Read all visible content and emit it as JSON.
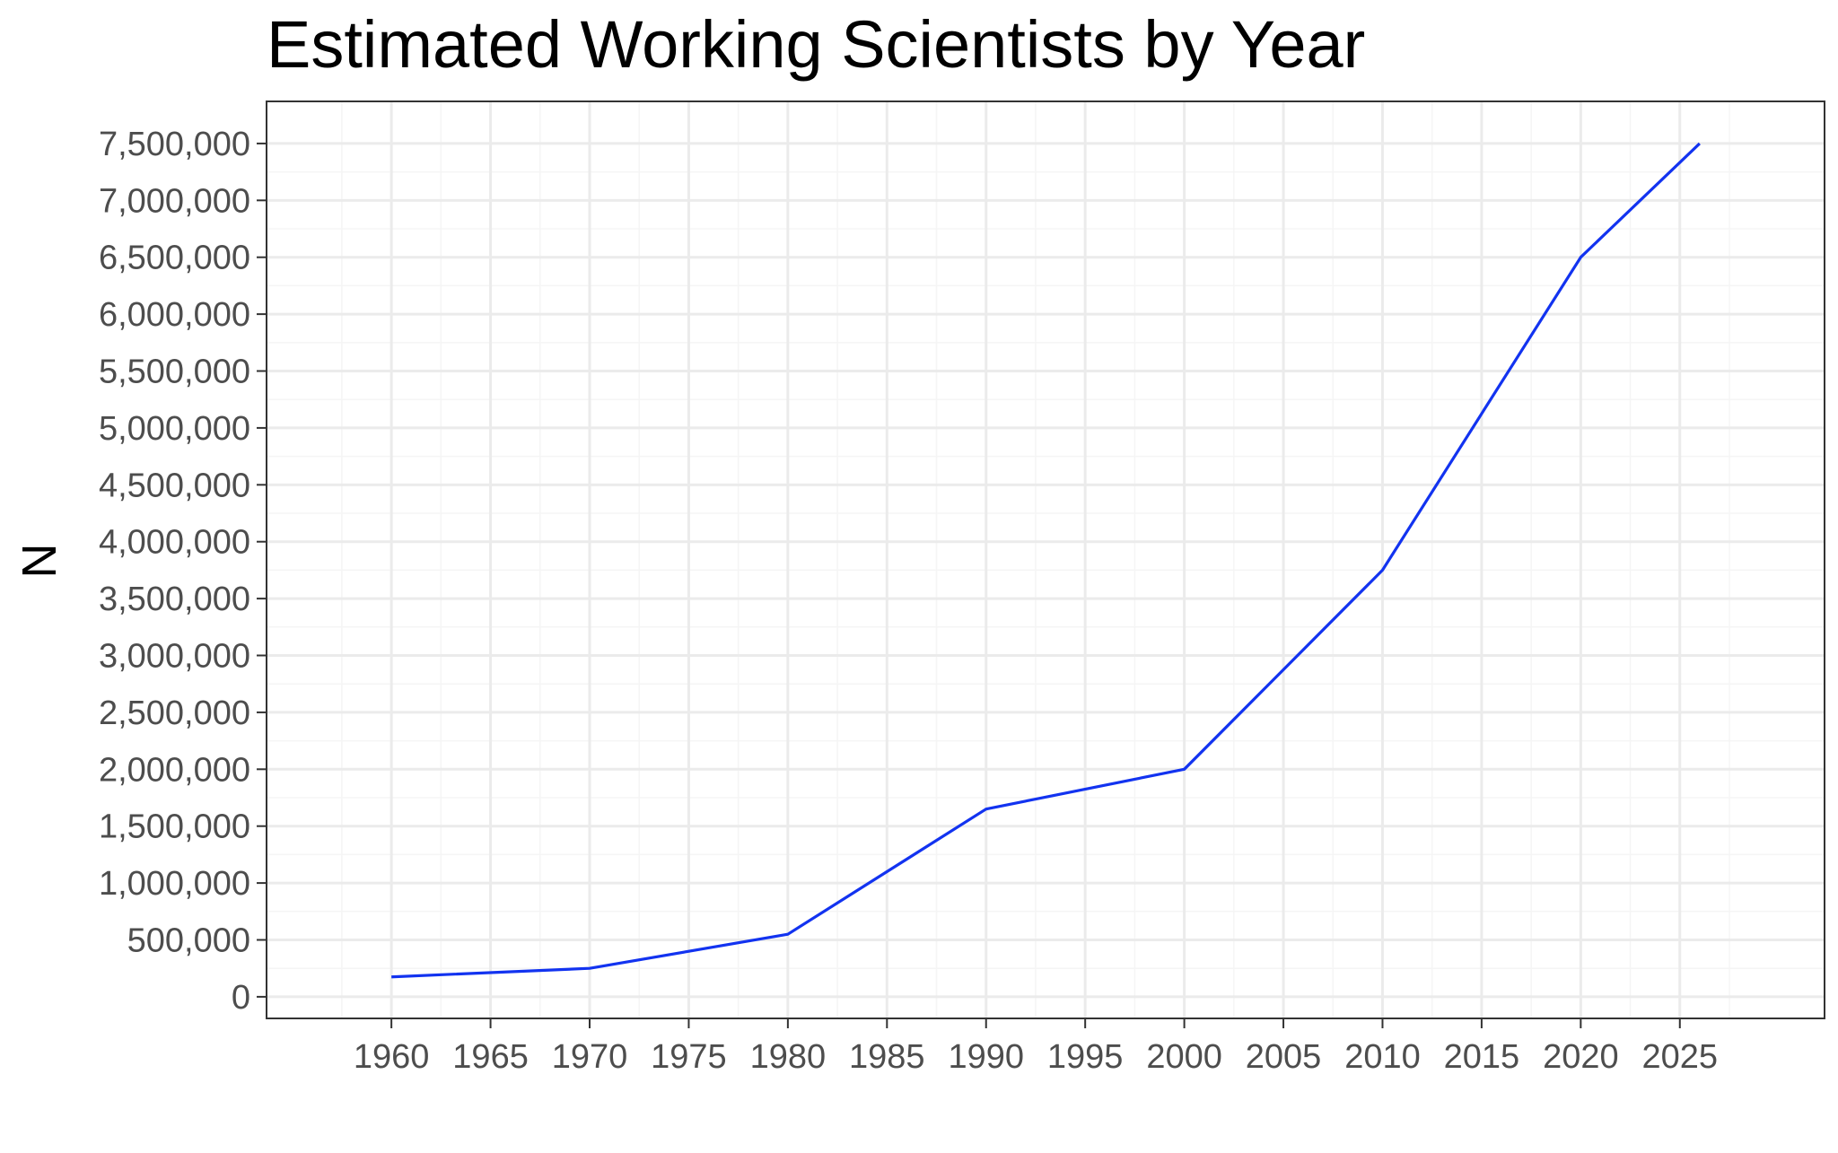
{
  "chart_data": {
    "type": "line",
    "title": "Estimated Working Scientists by Year",
    "xlabel": "",
    "ylabel": "N",
    "x": [
      1960,
      1970,
      1980,
      1990,
      2000,
      2010,
      2020,
      2026
    ],
    "series": [
      {
        "values": [
          175000,
          250000,
          550000,
          1650000,
          2000000,
          3750000,
          6500000,
          7500000
        ]
      }
    ],
    "xlim": [
      1953.7,
      2032.3
    ],
    "ylim": [
      -190000,
      7870000
    ],
    "x_ticks": [
      1960,
      1965,
      1970,
      1975,
      1980,
      1985,
      1990,
      1995,
      2000,
      2005,
      2010,
      2015,
      2020,
      2025
    ],
    "x_tick_labels": [
      "1960",
      "1965",
      "1970",
      "1975",
      "1980",
      "1985",
      "1990",
      "1995",
      "2000",
      "2005",
      "2010",
      "2015",
      "2020",
      "2025"
    ],
    "y_ticks": [
      0,
      500000,
      1000000,
      1500000,
      2000000,
      2500000,
      3000000,
      3500000,
      4000000,
      4500000,
      5000000,
      5500000,
      6000000,
      6500000,
      7000000,
      7500000
    ],
    "y_tick_labels": [
      "0",
      "500,000",
      "1,000,000",
      "1,500,000",
      "2,000,000",
      "2,500,000",
      "3,000,000",
      "3,500,000",
      "4,000,000",
      "4,500,000",
      "5,000,000",
      "5,500,000",
      "6,000,000",
      "6,500,000",
      "7,000,000",
      "7,500,000"
    ],
    "grid": true,
    "legend": "none",
    "colors": {
      "line": "#1233f0",
      "grid_major": "#ebebeb",
      "grid_minor": "#f5f5f5",
      "panel_border": "#333333",
      "tick_label": "#4d4d4d",
      "title": "#000000"
    }
  }
}
